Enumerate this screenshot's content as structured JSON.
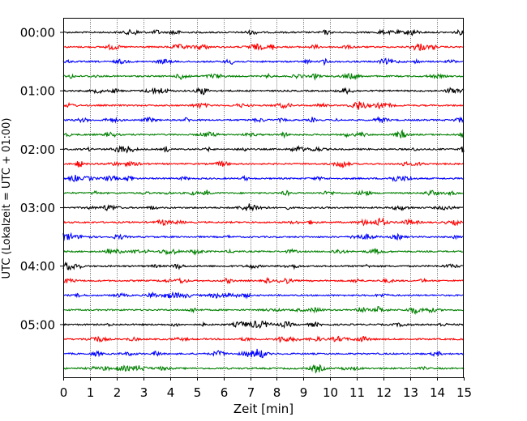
{
  "chart_data": {
    "type": "line",
    "title": "",
    "xlabel": "Zeit  [min]",
    "ylabel": "UTC (Lokalzeit = UTC + 01:00)",
    "xlim": [
      0,
      15
    ],
    "x_ticks": [
      "0",
      "1",
      "2",
      "3",
      "4",
      "5",
      "6",
      "7",
      "8",
      "9",
      "10",
      "11",
      "12",
      "13",
      "14",
      "15"
    ],
    "y_ticks": [
      "00:00",
      "01:00",
      "02:00",
      "03:00",
      "04:00",
      "05:00"
    ],
    "x_grid": true,
    "y_grid": false,
    "legend": "none",
    "trace_interval_min": 15,
    "trace_colors": [
      "#000000",
      "#ff0000",
      "#0000ff",
      "#008000"
    ],
    "traces": [
      {
        "start": "00:00",
        "color": "#000000"
      },
      {
        "start": "00:15",
        "color": "#ff0000"
      },
      {
        "start": "00:30",
        "color": "#0000ff"
      },
      {
        "start": "00:45",
        "color": "#008000"
      },
      {
        "start": "01:00",
        "color": "#000000"
      },
      {
        "start": "01:15",
        "color": "#ff0000"
      },
      {
        "start": "01:30",
        "color": "#0000ff"
      },
      {
        "start": "01:45",
        "color": "#008000"
      },
      {
        "start": "02:00",
        "color": "#000000"
      },
      {
        "start": "02:15",
        "color": "#ff0000"
      },
      {
        "start": "02:30",
        "color": "#0000ff",
        "event_at_min": 2.5
      },
      {
        "start": "02:45",
        "color": "#008000"
      },
      {
        "start": "03:00",
        "color": "#000000"
      },
      {
        "start": "03:15",
        "color": "#ff0000"
      },
      {
        "start": "03:30",
        "color": "#0000ff"
      },
      {
        "start": "03:45",
        "color": "#008000"
      },
      {
        "start": "04:00",
        "color": "#000000"
      },
      {
        "start": "04:15",
        "color": "#ff0000"
      },
      {
        "start": "04:30",
        "color": "#0000ff"
      },
      {
        "start": "04:45",
        "color": "#008000"
      },
      {
        "start": "05:00",
        "color": "#000000"
      },
      {
        "start": "05:15",
        "color": "#ff0000"
      },
      {
        "start": "05:30",
        "color": "#0000ff"
      },
      {
        "start": "05:45",
        "color": "#008000"
      }
    ]
  }
}
